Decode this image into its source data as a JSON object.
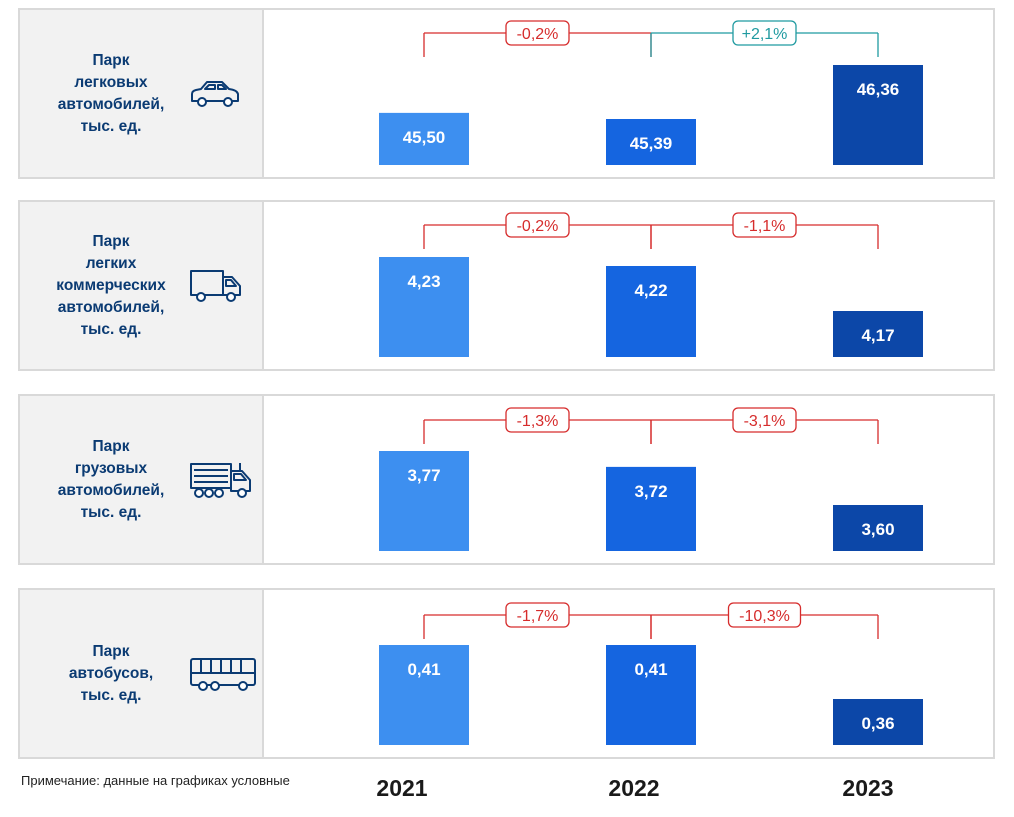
{
  "colors": {
    "bar_2021": "#3d8ff0",
    "bar_2022": "#1565e0",
    "bar_2023": "#0c47a8",
    "decrease": "#d62c2c",
    "increase": "#1f9aa0",
    "label_text": "#0b3b73"
  },
  "icons": [
    "car-icon",
    "van-icon",
    "truck-icon",
    "bus-icon"
  ],
  "footnote": "Примечание: данные на графиках условные",
  "years": [
    "2021",
    "2022",
    "2023"
  ],
  "chart_data": [
    {
      "type": "bar",
      "title": [
        "Парк",
        "легковых",
        "автомобилей,",
        "тыс. ед."
      ],
      "icon": "car-icon",
      "categories": [
        "2021",
        "2022",
        "2023"
      ],
      "values": [
        45.5,
        45.39,
        46.36
      ],
      "value_labels": [
        "45,50",
        "45,39",
        "46,36"
      ],
      "changes": [
        {
          "label": "-0,2%",
          "direction": "down"
        },
        {
          "label": "+2,1%",
          "direction": "up"
        }
      ]
    },
    {
      "type": "bar",
      "title": [
        "Парк",
        "легких",
        "коммерческих",
        "автомобилей,",
        "тыс. ед."
      ],
      "icon": "van-icon",
      "categories": [
        "2021",
        "2022",
        "2023"
      ],
      "values": [
        4.23,
        4.22,
        4.17
      ],
      "value_labels": [
        "4,23",
        "4,22",
        "4,17"
      ],
      "changes": [
        {
          "label": "-0,2%",
          "direction": "down"
        },
        {
          "label": "-1,1%",
          "direction": "down"
        }
      ]
    },
    {
      "type": "bar",
      "title": [
        "Парк",
        "грузовых",
        "автомобилей,",
        "тыс. ед."
      ],
      "icon": "truck-icon",
      "categories": [
        "2021",
        "2022",
        "2023"
      ],
      "values": [
        3.77,
        3.72,
        3.6
      ],
      "value_labels": [
        "3,77",
        "3,72",
        "3,60"
      ],
      "changes": [
        {
          "label": "-1,3%",
          "direction": "down"
        },
        {
          "label": "-3,1%",
          "direction": "down"
        }
      ]
    },
    {
      "type": "bar",
      "title": [
        "Парк",
        "автобусов,",
        "тыс. ед."
      ],
      "icon": "bus-icon",
      "categories": [
        "2021",
        "2022",
        "2023"
      ],
      "values": [
        0.41,
        0.41,
        0.36
      ],
      "value_labels": [
        "0,41",
        "0,41",
        "0,36"
      ],
      "changes": [
        {
          "label": "-1,7%",
          "direction": "down"
        },
        {
          "label": "-10,3%",
          "direction": "down"
        }
      ]
    }
  ]
}
